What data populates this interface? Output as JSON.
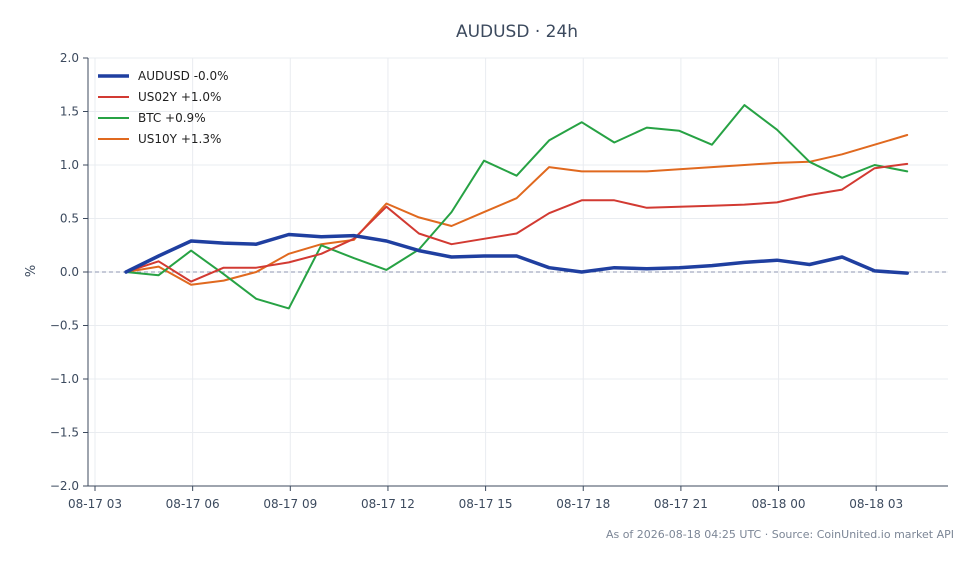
{
  "chart_data": {
    "type": "line",
    "title": "AUDUSD · 24h",
    "ylabel": "%",
    "xlabel": "",
    "ylim": [
      -2.0,
      2.0
    ],
    "yticks": [
      2.0,
      1.5,
      1.0,
      0.5,
      0.0,
      -0.5,
      -1.0,
      -1.5,
      -2.0
    ],
    "ytick_labels": [
      "2.0",
      "1.5",
      "1.0",
      "0.5",
      "0.0",
      "−0.5",
      "−1.0",
      "−1.5",
      "−2.0"
    ],
    "x": [
      "08-17 04:00",
      "08-17 05:00",
      "08-17 06:00",
      "08-17 07:00",
      "08-17 08:00",
      "08-17 09:00",
      "08-17 10:00",
      "08-17 11:00",
      "08-17 12:00",
      "08-17 13:00",
      "08-17 14:00",
      "08-17 15:00",
      "08-17 16:00",
      "08-17 17:00",
      "08-17 18:00",
      "08-17 19:00",
      "08-17 20:00",
      "08-17 21:00",
      "08-17 22:00",
      "08-17 23:00",
      "08-18 00:00",
      "08-18 01:00",
      "08-18 02:00",
      "08-18 03:00",
      "08-18 04:00"
    ],
    "xticks": [
      "08-17 03",
      "08-17 06",
      "08-17 09",
      "08-17 12",
      "08-17 15",
      "08-17 18",
      "08-17 21",
      "08-18 00",
      "08-18 03"
    ],
    "grid": true,
    "zero_line": true,
    "legend_position": "top-left",
    "series": [
      {
        "name": "AUDUSD -0.0%",
        "color": "#1f3fa0",
        "emphasis": true,
        "values": [
          0.0,
          0.15,
          0.29,
          0.27,
          0.26,
          0.35,
          0.33,
          0.34,
          0.29,
          0.2,
          0.14,
          0.15,
          0.15,
          0.04,
          0.0,
          0.04,
          0.03,
          0.04,
          0.06,
          0.09,
          0.11,
          0.07,
          0.14,
          0.01,
          -0.01
        ]
      },
      {
        "name": "US02Y +1.0%",
        "color": "#d23a32",
        "values": [
          0.0,
          0.1,
          -0.09,
          0.04,
          0.04,
          0.09,
          0.17,
          0.31,
          0.61,
          0.36,
          0.26,
          0.31,
          0.36,
          0.55,
          0.67,
          0.67,
          0.6,
          0.61,
          0.62,
          0.63,
          0.65,
          0.72,
          0.77,
          0.97,
          1.01
        ]
      },
      {
        "name": "BTC +0.9%",
        "color": "#27a244",
        "values": [
          0.0,
          -0.03,
          0.2,
          -0.02,
          -0.25,
          -0.34,
          0.25,
          0.13,
          0.02,
          0.21,
          0.56,
          1.04,
          0.9,
          1.23,
          1.4,
          1.21,
          1.35,
          1.32,
          1.19,
          1.56,
          1.33,
          1.03,
          0.88,
          1.0,
          0.94
        ]
      },
      {
        "name": "US10Y +1.3%",
        "color": "#e0691f",
        "values": [
          0.0,
          0.05,
          -0.12,
          -0.08,
          0.0,
          0.17,
          0.26,
          0.3,
          0.64,
          0.51,
          0.43,
          0.56,
          0.69,
          0.98,
          0.94,
          0.94,
          0.94,
          0.96,
          0.98,
          1.0,
          1.02,
          1.03,
          1.1,
          1.19,
          1.28
        ]
      }
    ]
  },
  "footer": "As of 2026-08-18 04:25 UTC · Source: CoinUnited.io market API"
}
